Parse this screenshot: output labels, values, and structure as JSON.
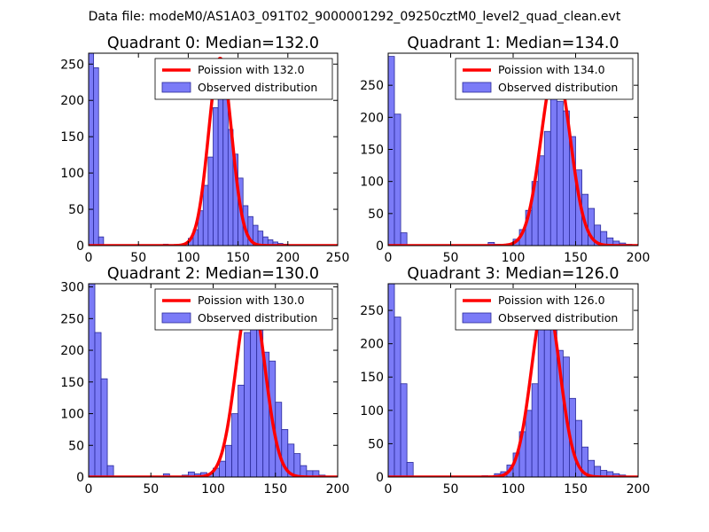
{
  "figure": {
    "title": "Data file: modeM0/AS1A03_091T02_9000001292_09250cztM0_level2_quad_clean.evt"
  },
  "colors": {
    "bar_fill": "#7b7bf7",
    "bar_edge": "#2a2a9a",
    "curve": "#ff0000",
    "axes": "#000000"
  },
  "chart_data": [
    {
      "type": "bar",
      "title": "Quadrant 0: Median=132.0",
      "xlim": [
        0,
        250
      ],
      "ylim": [
        0,
        265
      ],
      "xticks": [
        0,
        50,
        100,
        150,
        200,
        250
      ],
      "yticks": [
        0,
        50,
        100,
        150,
        200,
        250
      ],
      "bin_width": 5,
      "bins": [
        {
          "x": 0,
          "y": 265
        },
        {
          "x": 5,
          "y": 245
        },
        {
          "x": 10,
          "y": 12
        },
        {
          "x": 75,
          "y": 2
        },
        {
          "x": 95,
          "y": 3
        },
        {
          "x": 100,
          "y": 10
        },
        {
          "x": 105,
          "y": 22
        },
        {
          "x": 110,
          "y": 48
        },
        {
          "x": 115,
          "y": 83
        },
        {
          "x": 120,
          "y": 122
        },
        {
          "x": 125,
          "y": 190
        },
        {
          "x": 130,
          "y": 235
        },
        {
          "x": 135,
          "y": 220
        },
        {
          "x": 140,
          "y": 160
        },
        {
          "x": 145,
          "y": 126
        },
        {
          "x": 150,
          "y": 93
        },
        {
          "x": 155,
          "y": 55
        },
        {
          "x": 160,
          "y": 40
        },
        {
          "x": 165,
          "y": 28
        },
        {
          "x": 170,
          "y": 20
        },
        {
          "x": 175,
          "y": 12
        },
        {
          "x": 180,
          "y": 8
        },
        {
          "x": 185,
          "y": 5
        },
        {
          "x": 190,
          "y": 3
        },
        {
          "x": 195,
          "y": 2
        },
        {
          "x": 200,
          "y": 1
        }
      ],
      "curve": {
        "label": "Poission with 132.0",
        "mean": 132,
        "peak": 258
      },
      "legend": [
        "Poission with 132.0",
        "Observed distribution"
      ]
    },
    {
      "type": "bar",
      "title": "Quadrant 1: Median=134.0",
      "xlim": [
        0,
        200
      ],
      "ylim": [
        0,
        300
      ],
      "xticks": [
        0,
        50,
        100,
        150,
        200
      ],
      "yticks": [
        0,
        50,
        100,
        150,
        200,
        250
      ],
      "bin_width": 5,
      "bins": [
        {
          "x": 0,
          "y": 295
        },
        {
          "x": 5,
          "y": 205
        },
        {
          "x": 10,
          "y": 20
        },
        {
          "x": 80,
          "y": 5
        },
        {
          "x": 85,
          "y": 2
        },
        {
          "x": 95,
          "y": 3
        },
        {
          "x": 100,
          "y": 10
        },
        {
          "x": 105,
          "y": 25
        },
        {
          "x": 110,
          "y": 55
        },
        {
          "x": 115,
          "y": 100
        },
        {
          "x": 120,
          "y": 140
        },
        {
          "x": 125,
          "y": 178
        },
        {
          "x": 130,
          "y": 240
        },
        {
          "x": 135,
          "y": 225
        },
        {
          "x": 140,
          "y": 210
        },
        {
          "x": 145,
          "y": 170
        },
        {
          "x": 150,
          "y": 118
        },
        {
          "x": 155,
          "y": 80
        },
        {
          "x": 160,
          "y": 58
        },
        {
          "x": 165,
          "y": 32
        },
        {
          "x": 170,
          "y": 22
        },
        {
          "x": 175,
          "y": 12
        },
        {
          "x": 180,
          "y": 7
        },
        {
          "x": 185,
          "y": 4
        },
        {
          "x": 190,
          "y": 2
        }
      ],
      "curve": {
        "label": "Poission with 134.0",
        "mean": 134,
        "peak": 280
      },
      "legend": [
        "Poission with 134.0",
        "Observed distribution"
      ]
    },
    {
      "type": "bar",
      "title": "Quadrant 2: Median=130.0",
      "xlim": [
        0,
        200
      ],
      "ylim": [
        0,
        305
      ],
      "xticks": [
        0,
        50,
        100,
        150,
        200
      ],
      "yticks": [
        0,
        50,
        100,
        150,
        200,
        250,
        300
      ],
      "bin_width": 5,
      "bins": [
        {
          "x": 0,
          "y": 305
        },
        {
          "x": 5,
          "y": 228
        },
        {
          "x": 10,
          "y": 155
        },
        {
          "x": 15,
          "y": 18
        },
        {
          "x": 60,
          "y": 5
        },
        {
          "x": 75,
          "y": 3
        },
        {
          "x": 80,
          "y": 8
        },
        {
          "x": 85,
          "y": 5
        },
        {
          "x": 90,
          "y": 7
        },
        {
          "x": 95,
          "y": 5
        },
        {
          "x": 100,
          "y": 14
        },
        {
          "x": 105,
          "y": 25
        },
        {
          "x": 110,
          "y": 50
        },
        {
          "x": 115,
          "y": 100
        },
        {
          "x": 120,
          "y": 145
        },
        {
          "x": 125,
          "y": 228
        },
        {
          "x": 130,
          "y": 255
        },
        {
          "x": 135,
          "y": 292
        },
        {
          "x": 140,
          "y": 197
        },
        {
          "x": 145,
          "y": 183
        },
        {
          "x": 150,
          "y": 118
        },
        {
          "x": 155,
          "y": 75
        },
        {
          "x": 160,
          "y": 52
        },
        {
          "x": 165,
          "y": 37
        },
        {
          "x": 170,
          "y": 18
        },
        {
          "x": 175,
          "y": 10
        },
        {
          "x": 180,
          "y": 10
        },
        {
          "x": 185,
          "y": 3
        }
      ],
      "curve": {
        "label": "Poission with 130.0",
        "mean": 130,
        "peak": 292
      },
      "legend": [
        "Poission with 130.0",
        "Observed distribution"
      ]
    },
    {
      "type": "bar",
      "title": "Quadrant 3: Median=126.0",
      "xlim": [
        0,
        200
      ],
      "ylim": [
        0,
        290
      ],
      "xticks": [
        0,
        50,
        100,
        150,
        200
      ],
      "yticks": [
        0,
        50,
        100,
        150,
        200,
        250
      ],
      "bin_width": 5,
      "bins": [
        {
          "x": 0,
          "y": 290
        },
        {
          "x": 5,
          "y": 240
        },
        {
          "x": 10,
          "y": 140
        },
        {
          "x": 15,
          "y": 22
        },
        {
          "x": 75,
          "y": 2
        },
        {
          "x": 85,
          "y": 5
        },
        {
          "x": 90,
          "y": 8
        },
        {
          "x": 95,
          "y": 18
        },
        {
          "x": 100,
          "y": 36
        },
        {
          "x": 105,
          "y": 68
        },
        {
          "x": 110,
          "y": 100
        },
        {
          "x": 115,
          "y": 140
        },
        {
          "x": 120,
          "y": 230
        },
        {
          "x": 125,
          "y": 265
        },
        {
          "x": 130,
          "y": 245
        },
        {
          "x": 135,
          "y": 190
        },
        {
          "x": 140,
          "y": 180
        },
        {
          "x": 145,
          "y": 118
        },
        {
          "x": 150,
          "y": 85
        },
        {
          "x": 155,
          "y": 45
        },
        {
          "x": 160,
          "y": 25
        },
        {
          "x": 165,
          "y": 16
        },
        {
          "x": 170,
          "y": 10
        },
        {
          "x": 175,
          "y": 8
        },
        {
          "x": 180,
          "y": 5
        },
        {
          "x": 185,
          "y": 3
        }
      ],
      "curve": {
        "label": "Poission with 126.0",
        "mean": 126,
        "peak": 270
      },
      "legend": [
        "Poission with 126.0",
        "Observed distribution"
      ]
    }
  ]
}
